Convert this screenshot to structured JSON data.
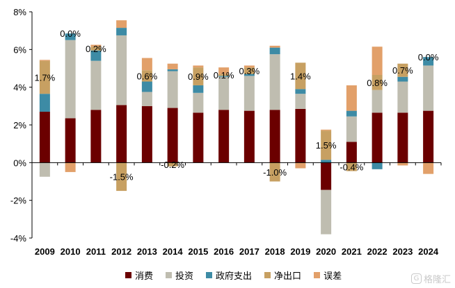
{
  "chart_data": {
    "type": "bar",
    "stacked": true,
    "categories": [
      "2009",
      "2010",
      "2011",
      "2012",
      "2013",
      "2014",
      "2015",
      "2016",
      "2017",
      "2018",
      "2019",
      "2020",
      "2021",
      "2022",
      "2023",
      "2024"
    ],
    "series": [
      {
        "name": "消费",
        "color": "#6b0000",
        "values": [
          2.7,
          2.35,
          2.8,
          3.05,
          3.0,
          2.9,
          2.65,
          2.8,
          2.75,
          2.8,
          2.85,
          -1.45,
          1.1,
          2.65,
          2.65,
          2.75
        ]
      },
      {
        "name": "投资",
        "color": "#bfbdb0",
        "values": [
          -0.75,
          4.15,
          2.6,
          3.7,
          0.75,
          1.95,
          1.05,
          1.75,
          1.85,
          2.95,
          0.8,
          -2.35,
          1.35,
          1.2,
          1.65,
          2.4
        ]
      },
      {
        "name": "政府支出",
        "color": "#3d8ba5",
        "values": [
          0.95,
          0.35,
          0.55,
          0.4,
          0.55,
          0.1,
          0.4,
          0.05,
          0.1,
          0.35,
          0.25,
          0.15,
          0.3,
          -0.35,
          0.25,
          0.45
        ]
      },
      {
        "name": "净出口",
        "color": "#c7a062",
        "values": [
          1.75,
          0.0,
          0.2,
          -1.5,
          0.6,
          -0.2,
          0.95,
          0.1,
          0.35,
          -1.0,
          1.4,
          1.55,
          -0.45,
          0.8,
          0.7,
          0.0
        ]
      },
      {
        "name": "误差",
        "color": "#e2a06a",
        "values": [
          0.05,
          -0.5,
          0.1,
          0.4,
          0.65,
          0.3,
          0.1,
          0.35,
          0.1,
          0.1,
          -0.3,
          0.05,
          1.35,
          1.5,
          -0.15,
          -0.6
        ]
      }
    ],
    "data_labels": [
      "1.7%",
      "0.0%",
      "0.2%",
      "-1.5%",
      "0.6%",
      "-0.2%",
      "0.9%",
      "0.1%",
      "0.3%",
      "-1.0%",
      "1.4%",
      "1.5%",
      "-0.4%",
      "0.8%",
      "0.7%",
      "0.0%"
    ],
    "y_ticks": [
      "-4%",
      "-2%",
      "0%",
      "2%",
      "4%",
      "6%",
      "8%"
    ],
    "ylim": [
      -4,
      8
    ],
    "grid": false,
    "legend_position": "bottom"
  },
  "watermark": {
    "icon": "gelonghui-logo-icon",
    "text": "格隆汇",
    "logo_glyph": "G"
  }
}
